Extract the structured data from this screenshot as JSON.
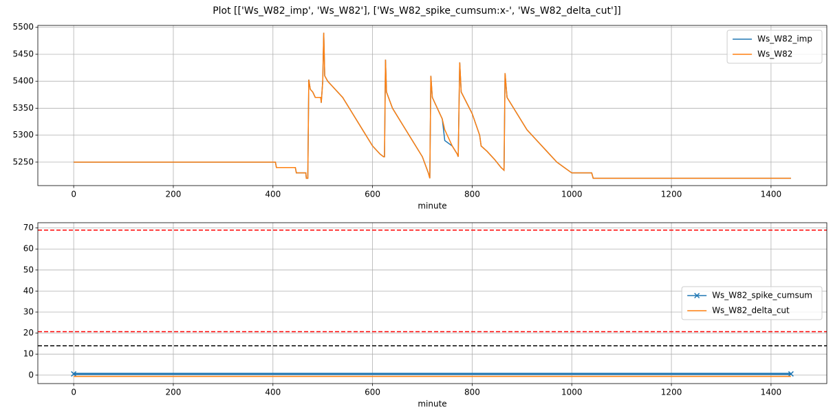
{
  "title": "Plot [['Ws_W82_imp', 'Ws_W82'], ['Ws_W82_spike_cumsum:x-', 'Ws_W82_delta_cut']]",
  "chart_data": [
    {
      "type": "line",
      "xlabel": "minute",
      "xlim": [
        -72,
        1512
      ],
      "xticks": [
        0,
        200,
        400,
        600,
        800,
        1000,
        1200,
        1400
      ],
      "ylim": [
        5206.5,
        5503.5
      ],
      "yticks": [
        5250,
        5300,
        5350,
        5400,
        5450,
        5500
      ],
      "grid": true,
      "legend": "upper right",
      "series": [
        {
          "name": "Ws_W82_imp",
          "color": "#1f77b4",
          "x": [
            0,
            405,
            407,
            445,
            447,
            466,
            467,
            470,
            472,
            475,
            480,
            485,
            496,
            497,
            500,
            502,
            504,
            510,
            520,
            540,
            560,
            580,
            600,
            615,
            622,
            624,
            626,
            628,
            640,
            660,
            680,
            700,
            708,
            712,
            715,
            717,
            720,
            740,
            745,
            760,
            770,
            772,
            775,
            778,
            800,
            815,
            818,
            830,
            845,
            858,
            864,
            866,
            870,
            890,
            910,
            930,
            950,
            970,
            985,
            1000,
            1040,
            1043,
            1440
          ],
          "values": [
            5250,
            5250,
            5240,
            5240,
            5230,
            5230,
            5220,
            5220,
            5403,
            5385,
            5380,
            5370,
            5370,
            5360,
            5400,
            5490,
            5410,
            5400,
            5390,
            5370,
            5340,
            5310,
            5280,
            5265,
            5260,
            5260,
            5440,
            5380,
            5350,
            5320,
            5290,
            5260,
            5240,
            5230,
            5220,
            5410,
            5370,
            5330,
            5290,
            5280,
            5265,
            5260,
            5435,
            5380,
            5340,
            5300,
            5280,
            5270,
            5255,
            5240,
            5235,
            5415,
            5370,
            5340,
            5310,
            5290,
            5270,
            5250,
            5240,
            5230,
            5230,
            5220,
            5220
          ]
        },
        {
          "name": "Ws_W82",
          "color": "#ff7f0e",
          "x": [
            0,
            405,
            407,
            445,
            447,
            466,
            467,
            470,
            472,
            475,
            480,
            485,
            496,
            497,
            500,
            502,
            504,
            510,
            520,
            540,
            560,
            580,
            600,
            615,
            622,
            624,
            626,
            628,
            640,
            660,
            680,
            700,
            708,
            712,
            715,
            717,
            720,
            740,
            745,
            760,
            770,
            772,
            775,
            778,
            800,
            815,
            818,
            830,
            845,
            858,
            864,
            866,
            870,
            890,
            910,
            930,
            950,
            970,
            985,
            1000,
            1040,
            1043,
            1440
          ],
          "values": [
            5250,
            5250,
            5240,
            5240,
            5230,
            5230,
            5220,
            5220,
            5403,
            5385,
            5380,
            5370,
            5370,
            5360,
            5400,
            5490,
            5410,
            5400,
            5390,
            5370,
            5340,
            5310,
            5280,
            5265,
            5260,
            5260,
            5440,
            5380,
            5350,
            5320,
            5290,
            5260,
            5240,
            5230,
            5220,
            5410,
            5370,
            5330,
            5310,
            5280,
            5265,
            5260,
            5435,
            5380,
            5340,
            5300,
            5280,
            5270,
            5255,
            5240,
            5235,
            5415,
            5370,
            5340,
            5310,
            5290,
            5270,
            5250,
            5240,
            5230,
            5230,
            5220,
            5220
          ]
        }
      ]
    },
    {
      "type": "line",
      "xlabel": "minute",
      "xlim": [
        -72,
        1512
      ],
      "xticks": [
        0,
        200,
        400,
        600,
        800,
        1000,
        1200,
        1400
      ],
      "ylim": [
        -4,
        72.5
      ],
      "yticks": [
        0,
        10,
        20,
        30,
        40,
        50,
        60,
        70
      ],
      "grid": true,
      "legend": "center right",
      "hlines": [
        {
          "y": 69,
          "color": "#ff0000"
        },
        {
          "y": 20.7,
          "color": "#ff0000"
        },
        {
          "y": 14,
          "color": "#000000"
        }
      ],
      "series": [
        {
          "name": "Ws_W82_spike_cumsum",
          "color": "#1f77b4",
          "marker": "x",
          "x": [
            0,
            1440
          ],
          "values": [
            0.6,
            0.6
          ]
        },
        {
          "name": "Ws_W82_delta_cut",
          "color": "#ff7f0e",
          "x": [
            0,
            1440
          ],
          "values": [
            -0.6,
            -0.6
          ]
        }
      ]
    }
  ]
}
